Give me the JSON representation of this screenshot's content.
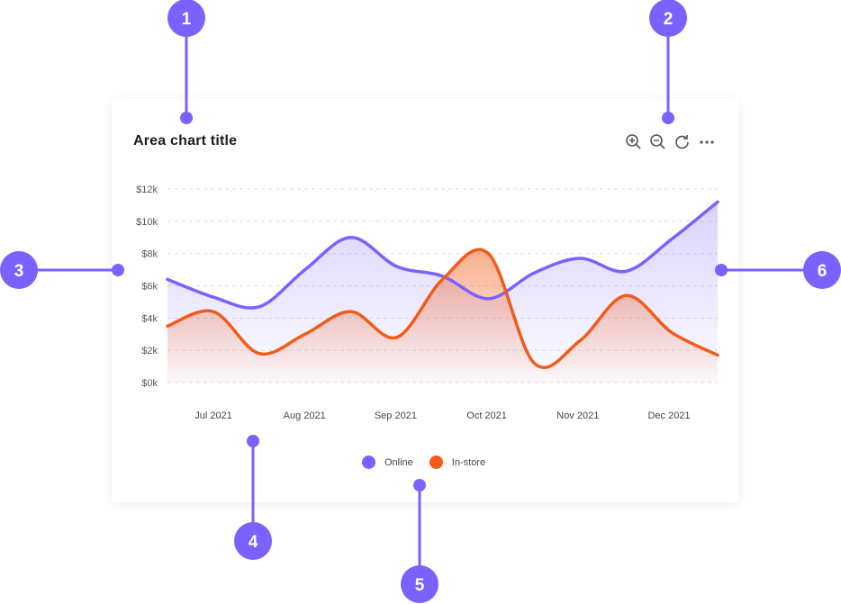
{
  "chart_data": {
    "type": "area",
    "title": "Area chart title",
    "xticks": [
      "Jul 2021",
      "Aug 2021",
      "Sep 2021",
      "Oct 2021",
      "Nov 2021",
      "Dec 2021"
    ],
    "yticks": [
      "$0k",
      "$2k",
      "$4k",
      "$6k",
      "$8k",
      "$10k",
      "$12k"
    ],
    "ylim": [
      0,
      12000
    ],
    "grid": true,
    "legend_placement": "bottom",
    "series": [
      {
        "name": "Online",
        "color": "#7B61FF",
        "values": [
          6400,
          5300,
          4700,
          7000,
          9000,
          7200,
          6600,
          5200,
          6800,
          7700,
          6900,
          8900,
          11200
        ]
      },
      {
        "name": "In-store",
        "color": "#F25C19",
        "values": [
          3500,
          4400,
          1800,
          3000,
          4400,
          2800,
          6400,
          8000,
          1200,
          2600,
          5400,
          3100,
          1700
        ]
      }
    ]
  },
  "toolbar": {
    "icons": [
      "zoom-in-icon",
      "zoom-out-icon",
      "refresh-icon",
      "more-icon"
    ]
  },
  "annotations": [
    "1",
    "2",
    "3",
    "4",
    "5",
    "6"
  ],
  "colors": {
    "annotation": "#7B61FF"
  }
}
